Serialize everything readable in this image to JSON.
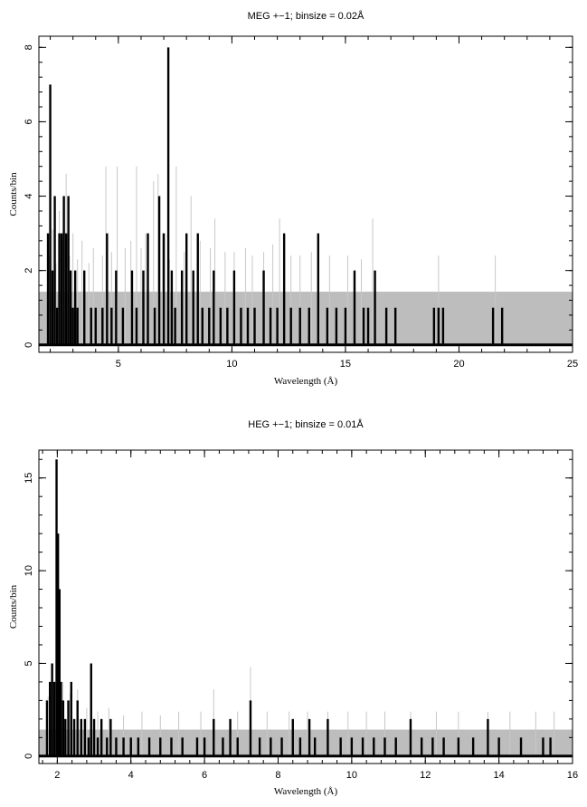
{
  "chart_data": [
    {
      "type": "histogram",
      "title": "MEG +−1; binsize = 0.02Å",
      "xlabel": "Wavelength (Å)",
      "ylabel": "Counts/bin",
      "xlim": [
        1.5,
        25
      ],
      "ylim": [
        -0.2,
        8.3
      ],
      "xticks": [
        5,
        10,
        15,
        20,
        25
      ],
      "xtick_labels": [
        "5",
        "10",
        "15",
        "20",
        "25"
      ],
      "yticks": [
        0,
        2,
        4,
        6,
        8
      ],
      "ytick_labels": [
        "0",
        "2",
        "4",
        "6",
        "8"
      ],
      "background_band": {
        "y_top": 1.43,
        "x_end": 25,
        "color": "#bdbdbd"
      },
      "series": [
        {
          "role": "model",
          "color": "#c8c8c8",
          "spikes": [
            [
              1.95,
              2.4
            ],
            [
              2.1,
              3.1
            ],
            [
              2.25,
              2.2
            ],
            [
              2.4,
              3.6
            ],
            [
              2.55,
              2.8
            ],
            [
              2.7,
              4.6
            ],
            [
              2.85,
              2.4
            ],
            [
              3.0,
              3.0
            ],
            [
              3.2,
              2.3
            ],
            [
              3.4,
              2.8
            ],
            [
              3.7,
              2.2
            ],
            [
              3.9,
              2.6
            ],
            [
              4.3,
              2.4
            ],
            [
              4.45,
              4.8
            ],
            [
              4.7,
              2.5
            ],
            [
              4.95,
              4.8
            ],
            [
              5.3,
              2.6
            ],
            [
              5.55,
              2.8
            ],
            [
              5.8,
              4.8
            ],
            [
              6.0,
              2.6
            ],
            [
              6.2,
              3.0
            ],
            [
              6.55,
              4.4
            ],
            [
              6.75,
              4.6
            ],
            [
              6.95,
              3.0
            ],
            [
              7.25,
              2.3
            ],
            [
              7.55,
              4.8
            ],
            [
              7.9,
              2.5
            ],
            [
              8.2,
              4.0
            ],
            [
              8.6,
              2.8
            ],
            [
              9.05,
              2.6
            ],
            [
              9.25,
              3.4
            ],
            [
              9.7,
              2.5
            ],
            [
              10.1,
              2.5
            ],
            [
              10.6,
              2.6
            ],
            [
              10.9,
              2.4
            ],
            [
              11.4,
              2.5
            ],
            [
              11.8,
              2.7
            ],
            [
              12.1,
              3.4
            ],
            [
              12.6,
              2.4
            ],
            [
              13.0,
              2.4
            ],
            [
              13.5,
              2.5
            ],
            [
              14.3,
              2.4
            ],
            [
              15.1,
              2.4
            ],
            [
              15.7,
              2.3
            ],
            [
              16.2,
              3.4
            ],
            [
              19.1,
              2.4
            ],
            [
              21.6,
              2.4
            ]
          ]
        },
        {
          "role": "data",
          "color": "#000000",
          "spikes": [
            [
              1.9,
              3
            ],
            [
              2.0,
              7
            ],
            [
              2.1,
              2
            ],
            [
              2.2,
              4
            ],
            [
              2.3,
              1
            ],
            [
              2.4,
              3
            ],
            [
              2.5,
              3
            ],
            [
              2.6,
              4
            ],
            [
              2.7,
              3
            ],
            [
              2.8,
              4
            ],
            [
              2.9,
              2
            ],
            [
              3.0,
              1
            ],
            [
              3.1,
              2
            ],
            [
              3.2,
              1
            ],
            [
              3.5,
              2
            ],
            [
              3.8,
              1
            ],
            [
              4.0,
              1
            ],
            [
              4.3,
              1
            ],
            [
              4.5,
              3
            ],
            [
              4.7,
              1
            ],
            [
              4.9,
              2
            ],
            [
              5.2,
              1
            ],
            [
              5.6,
              2
            ],
            [
              5.8,
              1
            ],
            [
              6.1,
              2
            ],
            [
              6.3,
              3
            ],
            [
              6.6,
              1
            ],
            [
              6.8,
              4
            ],
            [
              7.0,
              3
            ],
            [
              7.2,
              8
            ],
            [
              7.35,
              2
            ],
            [
              7.5,
              1
            ],
            [
              7.8,
              2
            ],
            [
              8.0,
              3
            ],
            [
              8.3,
              2
            ],
            [
              8.5,
              3
            ],
            [
              8.7,
              1
            ],
            [
              9.0,
              1
            ],
            [
              9.2,
              2
            ],
            [
              9.5,
              1
            ],
            [
              9.8,
              1
            ],
            [
              10.1,
              2
            ],
            [
              10.4,
              1
            ],
            [
              10.7,
              1
            ],
            [
              11.0,
              1
            ],
            [
              11.4,
              2
            ],
            [
              11.7,
              1
            ],
            [
              12.0,
              1
            ],
            [
              12.3,
              3
            ],
            [
              12.6,
              1
            ],
            [
              13.0,
              1
            ],
            [
              13.4,
              1
            ],
            [
              13.8,
              3
            ],
            [
              14.2,
              1
            ],
            [
              14.6,
              1
            ],
            [
              15.0,
              1
            ],
            [
              15.4,
              2
            ],
            [
              15.8,
              1
            ],
            [
              16.0,
              1
            ],
            [
              16.3,
              2
            ],
            [
              16.8,
              1
            ],
            [
              17.2,
              1
            ],
            [
              18.9,
              1
            ],
            [
              19.1,
              1
            ],
            [
              19.3,
              1
            ],
            [
              21.5,
              1
            ],
            [
              21.9,
              1
            ]
          ]
        }
      ]
    },
    {
      "type": "histogram",
      "title": "HEG +−1; binsize = 0.01Å",
      "xlabel": "Wavelength (Å)",
      "ylabel": "Counts/bin",
      "xlim": [
        1.5,
        16
      ],
      "ylim": [
        -0.4,
        16.5
      ],
      "xticks": [
        2,
        4,
        6,
        8,
        10,
        12,
        14,
        16
      ],
      "xtick_labels": [
        "2",
        "4",
        "6",
        "8",
        "10",
        "12",
        "14",
        "16"
      ],
      "yticks": [
        0,
        5,
        10,
        15
      ],
      "ytick_labels": [
        "0",
        "5",
        "10",
        "15"
      ],
      "background_band": {
        "y_top": 1.43,
        "x_end": 16,
        "color": "#bdbdbd"
      },
      "series": [
        {
          "role": "model",
          "color": "#c8c8c8",
          "spikes": [
            [
              1.75,
              3.2
            ],
            [
              1.85,
              4.4
            ],
            [
              2.0,
              6.4
            ],
            [
              2.15,
              4.0
            ],
            [
              2.35,
              3.4
            ],
            [
              2.55,
              3.6
            ],
            [
              2.8,
              2.6
            ],
            [
              3.1,
              2.4
            ],
            [
              3.4,
              2.6
            ],
            [
              3.8,
              2.2
            ],
            [
              4.3,
              2.4
            ],
            [
              4.8,
              2.2
            ],
            [
              5.3,
              2.4
            ],
            [
              5.9,
              2.4
            ],
            [
              6.25,
              3.6
            ],
            [
              6.9,
              2.4
            ],
            [
              7.25,
              4.8
            ],
            [
              7.7,
              2.4
            ],
            [
              8.3,
              2.4
            ],
            [
              8.8,
              2.4
            ],
            [
              9.35,
              2.4
            ],
            [
              9.9,
              2.4
            ],
            [
              10.4,
              2.4
            ],
            [
              10.9,
              2.4
            ],
            [
              11.6,
              2.4
            ],
            [
              12.3,
              2.4
            ],
            [
              12.9,
              2.4
            ],
            [
              13.7,
              2.4
            ],
            [
              14.3,
              2.4
            ],
            [
              15.0,
              2.4
            ],
            [
              15.5,
              2.4
            ]
          ]
        },
        {
          "role": "data",
          "color": "#000000",
          "spikes": [
            [
              1.72,
              3
            ],
            [
              1.8,
              4
            ],
            [
              1.86,
              5
            ],
            [
              1.92,
              4
            ],
            [
              1.98,
              16
            ],
            [
              2.02,
              12
            ],
            [
              2.06,
              9
            ],
            [
              2.1,
              4
            ],
            [
              2.16,
              3
            ],
            [
              2.22,
              2
            ],
            [
              2.3,
              3
            ],
            [
              2.38,
              4
            ],
            [
              2.46,
              2
            ],
            [
              2.55,
              3
            ],
            [
              2.65,
              2
            ],
            [
              2.75,
              2
            ],
            [
              2.85,
              1
            ],
            [
              2.92,
              5
            ],
            [
              3.0,
              2
            ],
            [
              3.1,
              1
            ],
            [
              3.2,
              2
            ],
            [
              3.35,
              1
            ],
            [
              3.45,
              2
            ],
            [
              3.6,
              1
            ],
            [
              3.8,
              1
            ],
            [
              4.0,
              1
            ],
            [
              4.2,
              1
            ],
            [
              4.5,
              1
            ],
            [
              4.8,
              1
            ],
            [
              5.1,
              1
            ],
            [
              5.4,
              1
            ],
            [
              5.8,
              1
            ],
            [
              6.0,
              1
            ],
            [
              6.25,
              2
            ],
            [
              6.5,
              1
            ],
            [
              6.7,
              2
            ],
            [
              6.9,
              1
            ],
            [
              7.25,
              3
            ],
            [
              7.5,
              1
            ],
            [
              7.8,
              1
            ],
            [
              8.1,
              1
            ],
            [
              8.4,
              2
            ],
            [
              8.6,
              1
            ],
            [
              8.85,
              2
            ],
            [
              9.0,
              1
            ],
            [
              9.35,
              2
            ],
            [
              9.7,
              1
            ],
            [
              10.0,
              1
            ],
            [
              10.3,
              1
            ],
            [
              10.6,
              1
            ],
            [
              10.9,
              1
            ],
            [
              11.2,
              1
            ],
            [
              11.6,
              2
            ],
            [
              11.9,
              1
            ],
            [
              12.2,
              1
            ],
            [
              12.5,
              1
            ],
            [
              12.9,
              1
            ],
            [
              13.3,
              1
            ],
            [
              13.7,
              2
            ],
            [
              14.0,
              1
            ],
            [
              14.6,
              1
            ],
            [
              15.2,
              1
            ],
            [
              15.4,
              1
            ]
          ]
        }
      ]
    }
  ]
}
